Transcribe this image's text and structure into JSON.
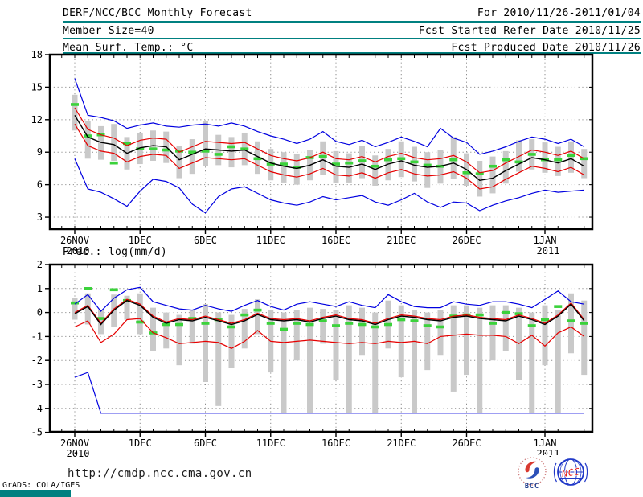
{
  "header": {
    "line1_left": "DERF/NCC/BCC Monthly Forecast",
    "line1_right": "For 2010/11/26-2011/01/04",
    "line2_left": "Member Size=40",
    "line2_right": "Fcst Started Refer Date 2010/11/25",
    "line3_right": "Fcst Produced Date 2010/11/26",
    "rule_color": "#008080"
  },
  "footer": {
    "url": "http://cmdp.ncc.cma.gov.cn",
    "credit": "GrADS: COLA/IGES",
    "bar_color": "#008080",
    "logos": {
      "bcc": "BCC",
      "ncc": "NCC"
    }
  },
  "chart_data": [
    {
      "name": "surface-temperature",
      "type": "line",
      "title": "Mean Surf. Temp.: °C",
      "n_days": 40,
      "x_ticks": [
        {
          "day": 0,
          "label": "26NOV",
          "year": "2010"
        },
        {
          "day": 5,
          "label": "1DEC"
        },
        {
          "day": 10,
          "label": "6DEC"
        },
        {
          "day": 15,
          "label": "11DEC"
        },
        {
          "day": 20,
          "label": "16DEC"
        },
        {
          "day": 25,
          "label": "21DEC"
        },
        {
          "day": 30,
          "label": "26DEC"
        },
        {
          "day": 36,
          "label": "1JAN",
          "year": "2011"
        }
      ],
      "y_ticks": [
        18,
        15,
        12,
        9,
        6,
        3
      ],
      "ylim": [
        1.9,
        18
      ],
      "grid": true,
      "series": [
        {
          "name": "upper-blue",
          "color": "#0000e0",
          "values": [
            15.8,
            12.4,
            12.2,
            11.9,
            11.2,
            11.5,
            11.7,
            11.4,
            11.3,
            11.5,
            11.6,
            11.4,
            11.7,
            11.4,
            10.9,
            10.5,
            10.2,
            9.8,
            10.2,
            10.9,
            10.0,
            9.7,
            10.1,
            9.5,
            9.9,
            10.4,
            10.0,
            9.5,
            11.2,
            10.3,
            9.9,
            8.8,
            9.1,
            9.5,
            10.0,
            10.4,
            10.2,
            9.8,
            10.2,
            9.5
          ]
        },
        {
          "name": "upper-red",
          "color": "#e60000",
          "values": [
            13.1,
            11.1,
            10.6,
            10.3,
            9.6,
            10.1,
            10.3,
            10.2,
            9.0,
            9.5,
            10.0,
            9.9,
            9.8,
            9.9,
            9.3,
            8.7,
            8.4,
            8.2,
            8.5,
            9.0,
            8.4,
            8.3,
            8.6,
            8.1,
            8.6,
            8.9,
            8.5,
            8.3,
            8.4,
            8.7,
            8.1,
            7.1,
            7.3,
            8.0,
            8.6,
            9.2,
            9.0,
            8.7,
            9.1,
            8.4
          ]
        },
        {
          "name": "mean",
          "color": "#000000",
          "values": [
            12.4,
            10.4,
            9.9,
            9.7,
            8.9,
            9.4,
            9.6,
            9.5,
            8.3,
            8.8,
            9.3,
            9.2,
            9.1,
            9.2,
            8.6,
            8.0,
            7.7,
            7.5,
            7.8,
            8.3,
            7.7,
            7.6,
            7.9,
            7.4,
            7.9,
            8.2,
            7.8,
            7.6,
            7.7,
            8.0,
            7.4,
            6.4,
            6.6,
            7.3,
            7.9,
            8.5,
            8.3,
            8.0,
            8.4,
            7.7
          ]
        },
        {
          "name": "lower-red",
          "color": "#e60000",
          "values": [
            11.6,
            9.6,
            9.1,
            8.9,
            8.1,
            8.6,
            8.8,
            8.7,
            7.5,
            8.0,
            8.5,
            8.4,
            8.3,
            8.4,
            7.8,
            7.2,
            6.9,
            6.7,
            7.0,
            7.5,
            6.9,
            6.8,
            7.1,
            6.6,
            7.1,
            7.4,
            7.0,
            6.8,
            6.9,
            7.2,
            6.6,
            5.6,
            5.8,
            6.5,
            7.1,
            7.7,
            7.5,
            7.2,
            7.6,
            6.9
          ]
        },
        {
          "name": "lower-blue",
          "color": "#0000e0",
          "values": [
            8.4,
            5.6,
            5.3,
            4.7,
            4.0,
            5.4,
            6.5,
            6.3,
            5.7,
            4.2,
            3.4,
            4.9,
            5.6,
            5.8,
            5.2,
            4.6,
            4.3,
            4.1,
            4.4,
            4.9,
            4.6,
            4.8,
            5.0,
            4.4,
            4.1,
            4.6,
            5.2,
            4.4,
            3.9,
            4.4,
            4.3,
            3.6,
            4.1,
            4.5,
            4.8,
            5.2,
            5.5,
            5.3,
            5.4,
            5.5
          ]
        },
        {
          "name": "green-marks",
          "style": "marks",
          "color": "#3bd23b",
          "values": [
            13.4,
            10.5,
            10.6,
            8.0,
            9.8,
            9.3,
            9.3,
            9.2,
            9.1,
            9.0,
            9.1,
            8.8,
            9.5,
            9.3,
            8.4,
            7.9,
            7.9,
            7.6,
            8.5,
            8.6,
            7.9,
            8.0,
            8.2,
            7.7,
            8.3,
            8.4,
            8.1,
            7.8,
            7.7,
            8.3,
            7.1,
            7.0,
            7.7,
            8.3,
            8.1,
            8.8,
            8.3,
            8.3,
            8.7,
            8.4
          ]
        }
      ],
      "spread_bars": {
        "color": "#c9c9c9",
        "hi": [
          14.3,
          11.9,
          11.4,
          11.6,
          10.4,
          10.8,
          11.0,
          10.9,
          9.6,
          10.2,
          11.9,
          10.6,
          10.4,
          10.8,
          10.0,
          9.3,
          9.0,
          8.8,
          9.2,
          10.0,
          9.1,
          8.9,
          9.6,
          8.7,
          9.3,
          10.0,
          9.5,
          9.0,
          9.2,
          10.4,
          8.9,
          8.2,
          8.6,
          9.1,
          10.1,
          10.2,
          9.9,
          9.5,
          10.0,
          9.3
        ],
        "lo": [
          11.0,
          8.4,
          8.3,
          8.2,
          7.4,
          7.9,
          8.2,
          8.0,
          6.6,
          7.0,
          7.7,
          7.8,
          7.6,
          7.8,
          7.0,
          6.4,
          6.2,
          6.0,
          6.4,
          6.9,
          6.2,
          6.2,
          6.6,
          5.9,
          6.4,
          6.7,
          6.3,
          5.7,
          6.1,
          6.5,
          5.9,
          4.9,
          5.2,
          6.1,
          7.2,
          7.4,
          7.1,
          6.8,
          7.1,
          6.6
        ]
      }
    },
    {
      "name": "precipitation",
      "type": "line",
      "title": "Prec.: log(mm/d)",
      "n_days": 40,
      "x_ticks": [
        {
          "day": 0,
          "label": "26NOV",
          "year": "2010"
        },
        {
          "day": 5,
          "label": "1DEC"
        },
        {
          "day": 10,
          "label": "6DEC"
        },
        {
          "day": 15,
          "label": "11DEC"
        },
        {
          "day": 20,
          "label": "16DEC"
        },
        {
          "day": 25,
          "label": "21DEC"
        },
        {
          "day": 30,
          "label": "26DEC"
        },
        {
          "day": 36,
          "label": "1JAN",
          "year": "2011"
        }
      ],
      "y_ticks": [
        2,
        1,
        0,
        -1,
        -2,
        -3,
        -4,
        -5
      ],
      "ylim": [
        -5,
        2
      ],
      "grid": true,
      "series": [
        {
          "name": "upper-blue",
          "color": "#0000e0",
          "values": [
            0.35,
            0.75,
            0.05,
            0.6,
            0.95,
            1.05,
            0.45,
            0.3,
            0.15,
            0.1,
            0.3,
            0.15,
            0.05,
            0.3,
            0.5,
            0.25,
            0.1,
            0.35,
            0.45,
            0.35,
            0.25,
            0.45,
            0.3,
            0.2,
            0.75,
            0.45,
            0.25,
            0.2,
            0.2,
            0.45,
            0.35,
            0.3,
            0.45,
            0.45,
            0.35,
            0.2,
            0.55,
            0.9,
            0.45,
            0.35
          ]
        },
        {
          "name": "upper-red",
          "color": "#e60000",
          "values": [
            0.0,
            0.3,
            -0.45,
            0.15,
            0.55,
            0.35,
            -0.15,
            -0.4,
            -0.25,
            -0.3,
            -0.15,
            -0.3,
            -0.45,
            -0.3,
            -0.03,
            -0.25,
            -0.3,
            -0.25,
            -0.35,
            -0.2,
            -0.1,
            -0.25,
            -0.3,
            -0.45,
            -0.25,
            -0.1,
            -0.15,
            -0.25,
            -0.3,
            -0.15,
            -0.1,
            -0.2,
            -0.25,
            -0.3,
            -0.1,
            -0.25,
            -0.45,
            -0.1,
            0.4,
            -0.3
          ]
        },
        {
          "name": "mean",
          "color": "#000000",
          "values": [
            -0.05,
            0.25,
            -0.5,
            0.1,
            0.5,
            0.3,
            -0.2,
            -0.45,
            -0.3,
            -0.35,
            -0.2,
            -0.35,
            -0.5,
            -0.35,
            -0.08,
            -0.3,
            -0.35,
            -0.3,
            -0.4,
            -0.25,
            -0.15,
            -0.3,
            -0.35,
            -0.5,
            -0.3,
            -0.15,
            -0.2,
            -0.3,
            -0.35,
            -0.2,
            -0.15,
            -0.25,
            -0.3,
            -0.35,
            -0.15,
            -0.3,
            -0.5,
            -0.15,
            0.35,
            -0.35
          ]
        },
        {
          "name": "lower-red",
          "color": "#e60000",
          "values": [
            -0.6,
            -0.35,
            -1.25,
            -0.9,
            -0.3,
            -0.25,
            -0.85,
            -1.05,
            -1.3,
            -1.25,
            -1.2,
            -1.25,
            -1.5,
            -1.2,
            -0.75,
            -1.2,
            -1.25,
            -1.2,
            -1.15,
            -1.2,
            -1.25,
            -1.3,
            -1.25,
            -1.3,
            -1.2,
            -1.25,
            -1.2,
            -1.3,
            -1.0,
            -0.95,
            -0.9,
            -0.95,
            -0.95,
            -1.0,
            -1.3,
            -0.95,
            -1.4,
            -0.85,
            -0.6,
            -1.0
          ]
        },
        {
          "name": "lower-blue",
          "color": "#0000e0",
          "values": [
            -2.7,
            -2.5,
            -4.2,
            -4.2,
            -4.2,
            -4.2,
            -4.2,
            -4.2,
            -4.2,
            -4.2,
            -4.2,
            -4.2,
            -4.2,
            -4.2,
            -4.2,
            -4.2,
            -4.2,
            -4.2,
            -4.2,
            -4.2,
            -4.2,
            -4.2,
            -4.2,
            -4.2,
            -4.2,
            -4.2,
            -4.2,
            -4.2,
            -4.2,
            -4.2,
            -4.2,
            -4.2,
            -4.2,
            -4.2,
            -4.2,
            -4.2,
            -4.2,
            -4.2,
            -4.2,
            -4.2
          ]
        },
        {
          "name": "green-marks",
          "style": "marks",
          "color": "#3bd23b",
          "values": [
            0.4,
            1.0,
            -0.25,
            0.95,
            0.5,
            -0.4,
            -0.85,
            -0.5,
            -0.5,
            -0.25,
            -0.45,
            -0.3,
            -0.6,
            -0.1,
            0.1,
            -0.45,
            -0.7,
            -0.45,
            -0.5,
            -0.35,
            -0.55,
            -0.45,
            -0.5,
            -0.6,
            -0.5,
            -0.3,
            -0.35,
            -0.55,
            -0.6,
            -0.15,
            -0.1,
            -0.1,
            -0.45,
            0.0,
            -0.05,
            -0.55,
            -0.3,
            0.25,
            -0.35,
            -0.45
          ]
        }
      ],
      "spread_bars": {
        "color": "#c9c9c9",
        "hi": [
          0.6,
          0.8,
          0.1,
          0.75,
          0.7,
          0.8,
          0.2,
          0.0,
          -0.1,
          0.1,
          0.35,
          0.0,
          -0.1,
          0.15,
          0.55,
          0.1,
          0.0,
          0.1,
          0.2,
          0.15,
          0.1,
          0.3,
          0.2,
          0.0,
          0.5,
          0.3,
          0.1,
          0.0,
          0.1,
          0.3,
          0.3,
          0.2,
          0.3,
          0.3,
          0.2,
          0.0,
          0.3,
          0.1,
          0.8,
          0.5
        ],
        "lo": [
          -0.3,
          -0.5,
          -0.9,
          -0.6,
          -0.3,
          -0.9,
          -1.6,
          -1.5,
          -2.2,
          -1.3,
          -2.9,
          -3.9,
          -2.3,
          -1.5,
          -0.9,
          -2.5,
          -4.2,
          -2.0,
          -4.2,
          -1.3,
          -2.8,
          -4.2,
          -1.8,
          -4.2,
          -1.5,
          -2.7,
          -4.2,
          -2.4,
          -1.8,
          -3.3,
          -2.6,
          -4.2,
          -2.0,
          -1.6,
          -2.8,
          -4.2,
          -2.2,
          -4.2,
          -1.7,
          -2.6
        ]
      }
    }
  ]
}
